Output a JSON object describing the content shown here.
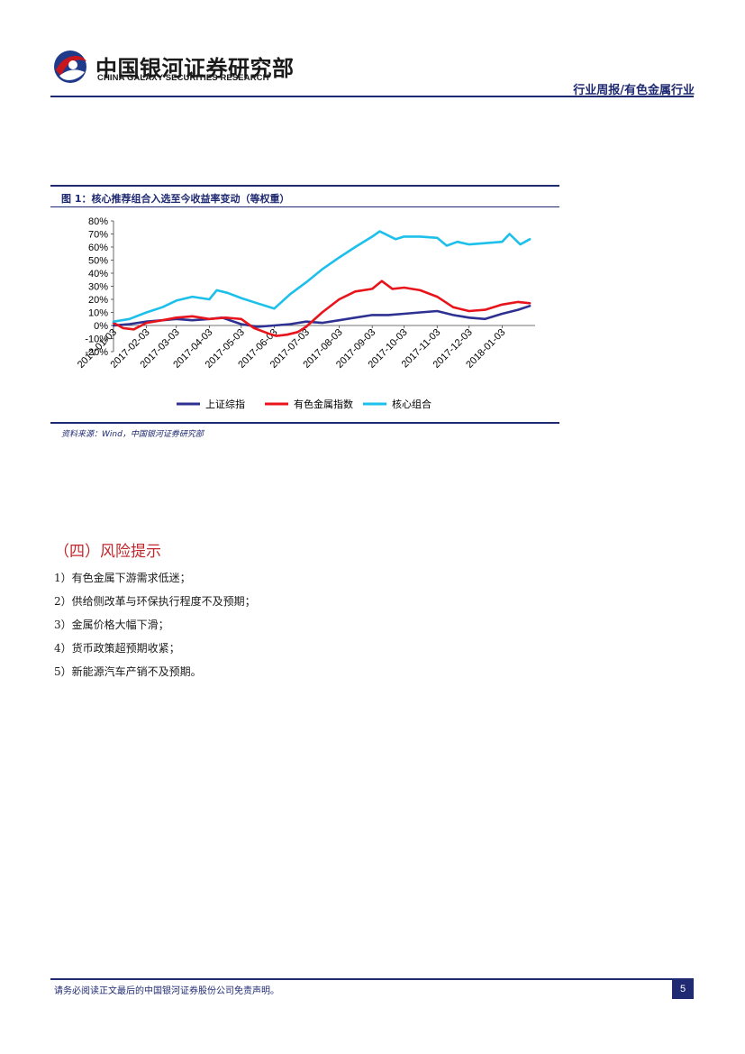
{
  "header": {
    "logo_cn": "中国银河证券研究部",
    "logo_en": "CHINA GALAXY SECURITIES RESEARCH",
    "section": "行业周报/有色金属行业",
    "colors": {
      "brand_navy": "#1f2a72",
      "logo_red": "#c8161d",
      "logo_navy": "#1f3a8a"
    }
  },
  "figure": {
    "caption": "图 1：核心推荐组合入选至今收益率变动（等权重）",
    "source": "资料来源：Wind，中国银河证券研究部"
  },
  "chart_data": {
    "type": "line",
    "title": "",
    "xlabel": "",
    "ylabel": "",
    "ylim": [
      -20,
      80
    ],
    "yticks": [
      "80%",
      "70%",
      "60%",
      "50%",
      "40%",
      "30%",
      "20%",
      "10%",
      "0%",
      "-10%",
      "-20%"
    ],
    "xticks": [
      "2017-01-03",
      "2017-02-03",
      "2017-03-03",
      "2017-04-03",
      "2017-05-03",
      "2017-06-03",
      "2017-07-03",
      "2017-08-03",
      "2017-09-03",
      "2017-10-03",
      "2017-11-03",
      "2017-12-03",
      "2018-01-03"
    ],
    "xlim": [
      "2017-01-03",
      "2018-02-03"
    ],
    "grid": false,
    "legend_position": "bottom",
    "series": [
      {
        "name": "上证综指",
        "color": "#2e3192",
        "x": [
          "2017-01-03",
          "2017-01-18",
          "2017-02-03",
          "2017-02-18",
          "2017-03-03",
          "2017-03-18",
          "2017-04-03",
          "2017-04-15",
          "2017-05-03",
          "2017-05-18",
          "2017-06-03",
          "2017-06-18",
          "2017-07-03",
          "2017-07-18",
          "2017-08-03",
          "2017-08-18",
          "2017-09-03",
          "2017-09-18",
          "2017-10-03",
          "2017-10-18",
          "2017-11-03",
          "2017-11-18",
          "2017-12-03",
          "2017-12-18",
          "2018-01-03",
          "2018-01-18",
          "2018-01-29"
        ],
        "values": [
          0,
          1,
          3,
          4,
          5,
          4,
          5,
          6,
          1,
          -1,
          0,
          1,
          3,
          2,
          4,
          6,
          8,
          8,
          9,
          10,
          11,
          8,
          6,
          5,
          9,
          12,
          15
        ]
      },
      {
        "name": "有色金属指数",
        "color": "#e8141c",
        "x": [
          "2017-01-03",
          "2017-01-12",
          "2017-01-22",
          "2017-02-03",
          "2017-02-18",
          "2017-03-03",
          "2017-03-18",
          "2017-04-03",
          "2017-04-18",
          "2017-05-03",
          "2017-05-15",
          "2017-05-28",
          "2017-06-05",
          "2017-06-15",
          "2017-06-25",
          "2017-07-03",
          "2017-07-18",
          "2017-08-03",
          "2017-08-18",
          "2017-09-03",
          "2017-09-12",
          "2017-09-22",
          "2017-10-03",
          "2017-10-18",
          "2017-11-03",
          "2017-11-18",
          "2017-12-03",
          "2017-12-18",
          "2018-01-03",
          "2018-01-18",
          "2018-01-29"
        ],
        "values": [
          2,
          -2,
          -3,
          2,
          4,
          6,
          7,
          5,
          6,
          5,
          -2,
          -6,
          -8,
          -7,
          -5,
          -1,
          10,
          20,
          26,
          28,
          34,
          28,
          29,
          27,
          22,
          14,
          11,
          12,
          16,
          18,
          17
        ]
      },
      {
        "name": "核心组合",
        "color": "#1cc0ea",
        "x": [
          "2017-01-03",
          "2017-01-18",
          "2017-02-03",
          "2017-02-18",
          "2017-03-03",
          "2017-03-18",
          "2017-04-03",
          "2017-04-10",
          "2017-04-20",
          "2017-05-03",
          "2017-05-18",
          "2017-06-03",
          "2017-06-18",
          "2017-07-03",
          "2017-07-18",
          "2017-08-03",
          "2017-08-18",
          "2017-09-03",
          "2017-09-10",
          "2017-09-25",
          "2017-10-03",
          "2017-10-18",
          "2017-11-03",
          "2017-11-12",
          "2017-11-22",
          "2017-12-03",
          "2017-12-18",
          "2018-01-03",
          "2018-01-10",
          "2018-01-20",
          "2018-01-29"
        ],
        "values": [
          3,
          5,
          10,
          14,
          19,
          22,
          20,
          27,
          25,
          21,
          17,
          13,
          24,
          33,
          43,
          52,
          60,
          68,
          72,
          66,
          68,
          68,
          67,
          61,
          64,
          62,
          63,
          64,
          70,
          62,
          66
        ]
      }
    ]
  },
  "section": {
    "heading": "（四）风险提示",
    "items": [
      "1）有色金属下游需求低迷；",
      "2）供给侧改革与环保执行程度不及预期；",
      "3）金属价格大幅下滑；",
      "4）货币政策超预期收紧；",
      "5）新能源汽车产销不及预期。"
    ]
  },
  "footer": {
    "disclaimer": "请务必阅读正文最后的中国银河证券股份公司免责声明。",
    "page_number": "5"
  }
}
